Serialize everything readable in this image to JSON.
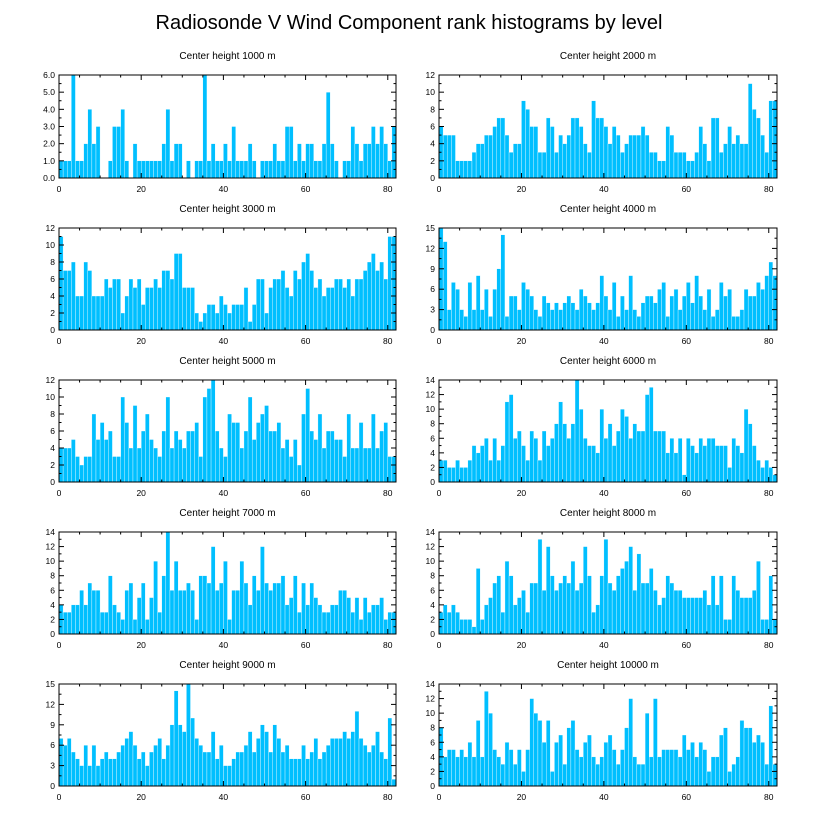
{
  "title": "Radiosonde V Wind Component rank histograms by level",
  "colors": {
    "bar_fill": "#00bfff",
    "bar_edge": "#ffffff",
    "axis": "#000000",
    "background": "#ffffff"
  },
  "chart_data": [
    {
      "type": "bar",
      "title": "Center height 1000 m",
      "x_start": 0,
      "xlim": [
        0,
        82
      ],
      "x_ticks": [
        0,
        20,
        40,
        60,
        80
      ],
      "ylim": [
        0,
        6
      ],
      "y_ticks": [
        0,
        1,
        2,
        3,
        4,
        5,
        6
      ],
      "y_tick_labels": [
        "0.0",
        "1.0",
        "2.0",
        "3.0",
        "4.0",
        "5.0",
        "6.0"
      ],
      "values": [
        1,
        1,
        1,
        6,
        1,
        1,
        2,
        4,
        2,
        3,
        0,
        0,
        1,
        3,
        3,
        4,
        1,
        0,
        2,
        1,
        1,
        1,
        1,
        1,
        1,
        2,
        4,
        1,
        2,
        2,
        0,
        1,
        0,
        1,
        1,
        6,
        1,
        2,
        1,
        1,
        2,
        1,
        3,
        1,
        1,
        1,
        2,
        1,
        0,
        1,
        1,
        1,
        2,
        1,
        1,
        3,
        3,
        1,
        2,
        1,
        2,
        2,
        1,
        1,
        2,
        5,
        2,
        1,
        0,
        1,
        1,
        3,
        2,
        1,
        2,
        2,
        3,
        2,
        3,
        2,
        1,
        3
      ]
    },
    {
      "type": "bar",
      "title": "Center height 2000 m",
      "x_start": 0,
      "xlim": [
        0,
        82
      ],
      "x_ticks": [
        0,
        20,
        40,
        60,
        80
      ],
      "ylim": [
        0,
        12
      ],
      "y_ticks": [
        0,
        2,
        4,
        6,
        8,
        10,
        12
      ],
      "y_tick_labels": [
        "0",
        "2",
        "4",
        "6",
        "8",
        "10",
        "12"
      ],
      "values": [
        6,
        5,
        5,
        5,
        2,
        2,
        2,
        2,
        3,
        4,
        4,
        5,
        5,
        6,
        7,
        7,
        5,
        3,
        4,
        4,
        9,
        8,
        6,
        6,
        3,
        3,
        7,
        6,
        3,
        5,
        4,
        5,
        7,
        7,
        6,
        4,
        3,
        9,
        7,
        7,
        6,
        4,
        6,
        5,
        3,
        4,
        5,
        5,
        5,
        6,
        5,
        3,
        3,
        2,
        2,
        6,
        5,
        3,
        3,
        3,
        2,
        2,
        3,
        6,
        4,
        2,
        7,
        7,
        3,
        4,
        6,
        4,
        5,
        4,
        4,
        11,
        8,
        7,
        5,
        3,
        9,
        9
      ]
    },
    {
      "type": "bar",
      "title": "Center height 3000 m",
      "x_start": 0,
      "xlim": [
        0,
        82
      ],
      "x_ticks": [
        0,
        20,
        40,
        60,
        80
      ],
      "ylim": [
        0,
        12
      ],
      "y_ticks": [
        0,
        2,
        4,
        6,
        8,
        10,
        12
      ],
      "y_tick_labels": [
        "0",
        "2",
        "4",
        "6",
        "8",
        "10",
        "12"
      ],
      "values": [
        11,
        7,
        7,
        8,
        4,
        4,
        8,
        7,
        4,
        4,
        4,
        6,
        5,
        6,
        6,
        2,
        4,
        6,
        5,
        6,
        3,
        5,
        5,
        6,
        5,
        7,
        7,
        6,
        9,
        9,
        5,
        5,
        5,
        2,
        1,
        2,
        3,
        3,
        2,
        4,
        3,
        2,
        3,
        3,
        3,
        5,
        1,
        3,
        6,
        6,
        2,
        5,
        6,
        6,
        7,
        5,
        4,
        7,
        6,
        8,
        9,
        7,
        5,
        6,
        4,
        5,
        5,
        6,
        6,
        5,
        6,
        4,
        6,
        6,
        7,
        8,
        9,
        7,
        8,
        6,
        11,
        11
      ]
    },
    {
      "type": "bar",
      "title": "Center height 4000 m",
      "x_start": 0,
      "xlim": [
        0,
        82
      ],
      "x_ticks": [
        0,
        20,
        40,
        60,
        80
      ],
      "ylim": [
        0,
        15
      ],
      "y_ticks": [
        0,
        3,
        6,
        9,
        12,
        15
      ],
      "y_tick_labels": [
        "0",
        "3",
        "6",
        "9",
        "12",
        "15"
      ],
      "values": [
        15,
        13,
        3,
        7,
        6,
        3,
        2,
        7,
        3,
        8,
        3,
        6,
        2,
        6,
        9,
        14,
        2,
        5,
        5,
        3,
        7,
        6,
        5,
        3,
        2,
        5,
        4,
        3,
        4,
        3,
        4,
        5,
        4,
        3,
        6,
        5,
        4,
        3,
        4,
        8,
        5,
        3,
        7,
        2,
        5,
        3,
        8,
        3,
        2,
        4,
        5,
        5,
        4,
        6,
        7,
        2,
        5,
        6,
        3,
        5,
        7,
        4,
        8,
        5,
        3,
        6,
        2,
        3,
        7,
        5,
        6,
        2,
        2,
        3,
        6,
        5,
        5,
        7,
        6,
        8,
        10,
        8
      ]
    },
    {
      "type": "bar",
      "title": "Center height 5000 m",
      "x_start": 0,
      "xlim": [
        0,
        82
      ],
      "x_ticks": [
        0,
        20,
        40,
        60,
        80
      ],
      "ylim": [
        0,
        12
      ],
      "y_ticks": [
        0,
        2,
        4,
        6,
        8,
        10,
        12
      ],
      "y_tick_labels": [
        "0",
        "2",
        "4",
        "6",
        "8",
        "10",
        "12"
      ],
      "values": [
        4,
        4,
        4,
        5,
        3,
        2,
        3,
        3,
        8,
        5,
        7,
        5,
        6,
        3,
        3,
        10,
        7,
        4,
        9,
        4,
        6,
        8,
        5,
        4,
        3,
        6,
        10,
        4,
        6,
        5,
        4,
        6,
        6,
        7,
        3,
        10,
        11,
        12,
        6,
        4,
        3,
        8,
        7,
        7,
        4,
        6,
        10,
        5,
        7,
        8,
        9,
        6,
        6,
        7,
        4,
        5,
        3,
        5,
        2,
        8,
        11,
        6,
        5,
        8,
        4,
        6,
        6,
        5,
        5,
        3,
        8,
        4,
        4,
        7,
        4,
        4,
        8,
        4,
        6,
        7,
        3,
        3
      ]
    },
    {
      "type": "bar",
      "title": "Center height 6000 m",
      "x_start": 0,
      "xlim": [
        0,
        82
      ],
      "x_ticks": [
        0,
        20,
        40,
        60,
        80
      ],
      "ylim": [
        0,
        14
      ],
      "y_ticks": [
        0,
        2,
        4,
        6,
        8,
        10,
        12,
        14
      ],
      "y_tick_labels": [
        "0",
        "2",
        "4",
        "6",
        "8",
        "10",
        "12",
        "14"
      ],
      "values": [
        3,
        3,
        2,
        2,
        3,
        2,
        2,
        3,
        5,
        4,
        5,
        6,
        3,
        6,
        3,
        5,
        11,
        12,
        6,
        7,
        5,
        3,
        7,
        6,
        3,
        7,
        5,
        6,
        8,
        11,
        8,
        6,
        8,
        14,
        10,
        6,
        5,
        5,
        4,
        10,
        6,
        8,
        5,
        7,
        10,
        9,
        6,
        8,
        7,
        7,
        12,
        13,
        7,
        7,
        7,
        4,
        6,
        4,
        6,
        1,
        6,
        5,
        4,
        6,
        5,
        6,
        6,
        5,
        5,
        5,
        2,
        6,
        5,
        4,
        10,
        8,
        5,
        3,
        2,
        3,
        2,
        1
      ]
    },
    {
      "type": "bar",
      "title": "Center height 7000 m",
      "x_start": 0,
      "xlim": [
        0,
        82
      ],
      "x_ticks": [
        0,
        20,
        40,
        60,
        80
      ],
      "ylim": [
        0,
        14
      ],
      "y_ticks": [
        0,
        2,
        4,
        6,
        8,
        10,
        12,
        14
      ],
      "y_tick_labels": [
        "0",
        "2",
        "4",
        "6",
        "8",
        "10",
        "12",
        "14"
      ],
      "values": [
        4,
        3,
        3,
        4,
        4,
        6,
        4,
        7,
        6,
        6,
        3,
        3,
        8,
        4,
        3,
        2,
        6,
        7,
        2,
        5,
        7,
        2,
        5,
        10,
        3,
        8,
        14,
        6,
        10,
        6,
        6,
        7,
        6,
        2,
        8,
        8,
        7,
        12,
        6,
        7,
        10,
        2,
        6,
        6,
        10,
        7,
        4,
        8,
        6,
        12,
        7,
        6,
        7,
        7,
        8,
        4,
        5,
        8,
        3,
        7,
        4,
        7,
        5,
        4,
        3,
        3,
        4,
        4,
        6,
        6,
        5,
        3,
        5,
        2,
        5,
        3,
        4,
        4,
        5,
        2,
        3,
        3
      ]
    },
    {
      "type": "bar",
      "title": "Center height 8000 m",
      "x_start": 0,
      "xlim": [
        0,
        82
      ],
      "x_ticks": [
        0,
        20,
        40,
        60,
        80
      ],
      "ylim": [
        0,
        14
      ],
      "y_ticks": [
        0,
        2,
        4,
        6,
        8,
        10,
        12,
        14
      ],
      "y_tick_labels": [
        "0",
        "2",
        "4",
        "6",
        "8",
        "10",
        "12",
        "14"
      ],
      "values": [
        3,
        4,
        3,
        4,
        3,
        2,
        2,
        2,
        1,
        9,
        2,
        4,
        5,
        7,
        8,
        3,
        10,
        8,
        4,
        5,
        6,
        3,
        7,
        7,
        13,
        6,
        12,
        8,
        6,
        7,
        8,
        7,
        10,
        6,
        7,
        12,
        8,
        3,
        4,
        8,
        13,
        7,
        6,
        8,
        9,
        10,
        12,
        6,
        11,
        7,
        7,
        9,
        6,
        4,
        5,
        8,
        7,
        6,
        6,
        5,
        5,
        5,
        5,
        5,
        6,
        4,
        8,
        4,
        8,
        2,
        2,
        8,
        6,
        5,
        5,
        5,
        6,
        10,
        2,
        2,
        8,
        2
      ]
    },
    {
      "type": "bar",
      "title": "Center height 9000 m",
      "x_start": 0,
      "xlim": [
        0,
        82
      ],
      "x_ticks": [
        0,
        20,
        40,
        60,
        80
      ],
      "ylim": [
        0,
        15
      ],
      "y_ticks": [
        0,
        3,
        6,
        9,
        12,
        15
      ],
      "y_tick_labels": [
        "0",
        "3",
        "6",
        "9",
        "12",
        "15"
      ],
      "values": [
        7,
        6,
        7,
        5,
        4,
        3,
        6,
        3,
        6,
        3,
        4,
        5,
        4,
        4,
        5,
        6,
        7,
        8,
        6,
        4,
        5,
        3,
        5,
        6,
        7,
        4,
        6,
        9,
        14,
        9,
        8,
        15,
        10,
        7,
        6,
        5,
        5,
        8,
        4,
        6,
        3,
        3,
        4,
        5,
        5,
        6,
        8,
        5,
        7,
        9,
        8,
        5,
        9,
        7,
        5,
        6,
        4,
        4,
        4,
        6,
        4,
        5,
        7,
        4,
        5,
        6,
        7,
        7,
        7,
        8,
        7,
        8,
        11,
        7,
        6,
        5,
        6,
        8,
        5,
        4,
        10,
        1
      ]
    },
    {
      "type": "bar",
      "title": "Center height 10000 m",
      "x_start": 0,
      "xlim": [
        0,
        82
      ],
      "x_ticks": [
        0,
        20,
        40,
        60,
        80
      ],
      "ylim": [
        0,
        14
      ],
      "y_ticks": [
        0,
        2,
        4,
        6,
        8,
        10,
        12,
        14
      ],
      "y_tick_labels": [
        "0",
        "2",
        "4",
        "6",
        "8",
        "10",
        "12",
        "14"
      ],
      "values": [
        8,
        4,
        5,
        5,
        4,
        5,
        4,
        6,
        4,
        9,
        4,
        13,
        10,
        5,
        4,
        3,
        6,
        5,
        3,
        5,
        2,
        5,
        12,
        10,
        9,
        6,
        9,
        2,
        6,
        7,
        3,
        8,
        9,
        5,
        4,
        6,
        7,
        4,
        3,
        4,
        6,
        7,
        5,
        3,
        5,
        8,
        12,
        4,
        3,
        3,
        10,
        4,
        12,
        4,
        5,
        5,
        5,
        5,
        4,
        7,
        5,
        6,
        4,
        6,
        5,
        2,
        4,
        4,
        7,
        8,
        2,
        3,
        4,
        9,
        8,
        8,
        6,
        7,
        6,
        3,
        11,
        3
      ]
    }
  ]
}
